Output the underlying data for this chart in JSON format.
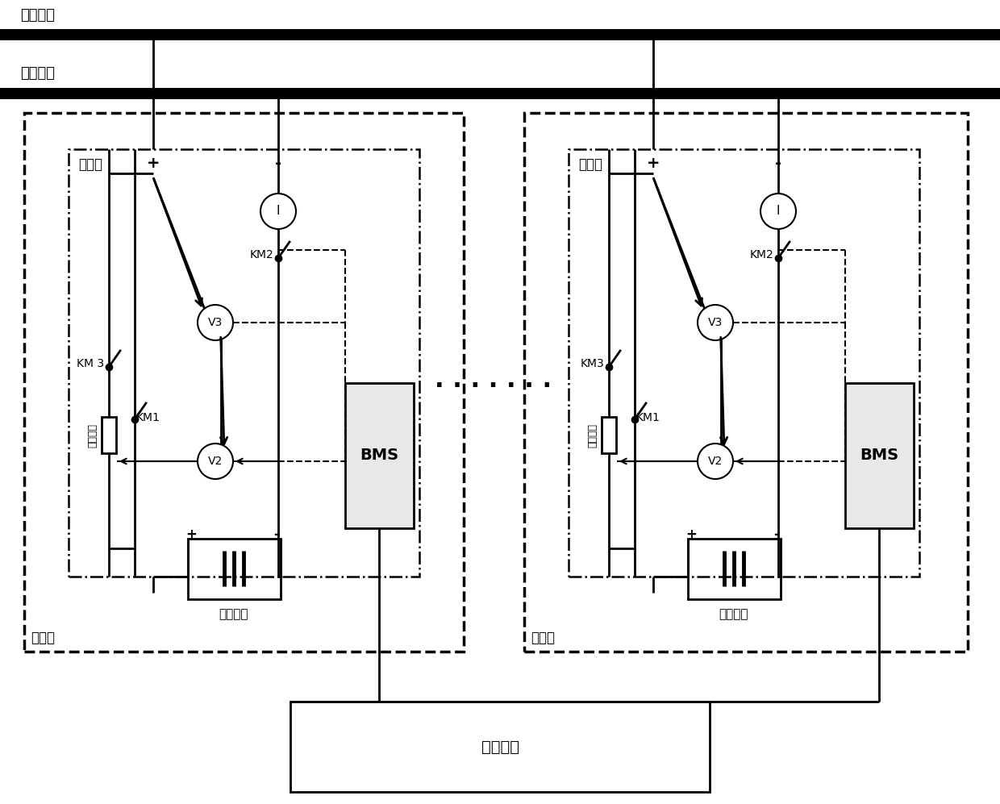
{
  "bg_color": "#ffffff",
  "pos_bus_label": "正极母线",
  "neg_bus_label": "负极母线",
  "control_unit_label": "控制单元",
  "battery_cluster_label": "电池簇",
  "hvbox_label": "高压箱",
  "storage_battery_label": "储能电池",
  "precharge_label": "预充电阻",
  "dots_label": "· · · · · · ·",
  "lw_bus": 10,
  "lw_thick": 2.5,
  "lw_thin": 1.5,
  "figw": 12.4,
  "figh": 9.97,
  "dpi": 100
}
